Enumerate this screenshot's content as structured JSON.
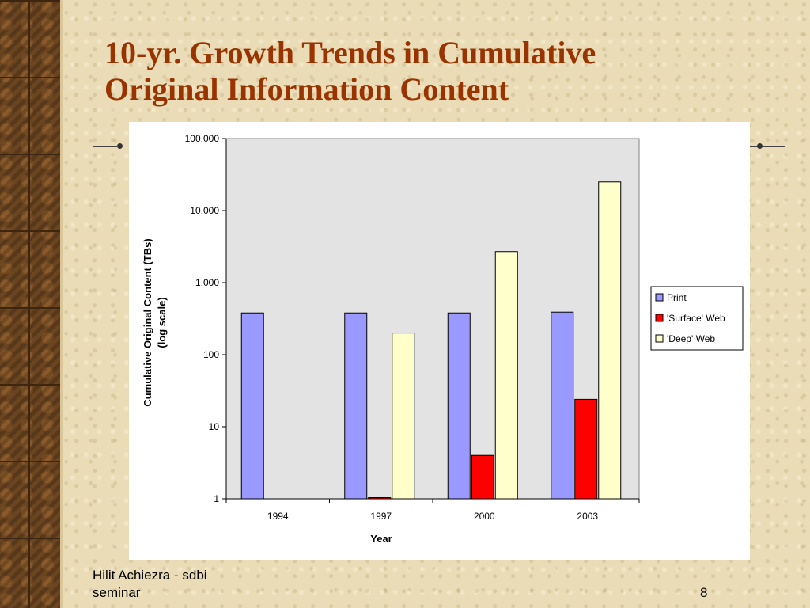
{
  "slide": {
    "title_line1": "10-yr. Growth Trends in Cumulative",
    "title_line2": "Original Information Content",
    "footer_line1": "Hilit Achiezra - sdbi",
    "footer_line2": "seminar",
    "page_number": "8",
    "accent_color": "#993300"
  },
  "chart_data": {
    "type": "bar",
    "scale": "log",
    "categories": [
      "1994",
      "1997",
      "2000",
      "2003"
    ],
    "series": [
      {
        "name": "Print",
        "color": "#9999ff",
        "values": [
          380,
          380,
          380,
          390
        ]
      },
      {
        "name": "'Surface' Web",
        "color": "#ff0000",
        "values": [
          null,
          1,
          4,
          24
        ]
      },
      {
        "name": "'Deep' Web",
        "color": "#ffffcc",
        "values": [
          null,
          200,
          2700,
          25000
        ]
      }
    ],
    "ylim": [
      1,
      100000
    ],
    "ytick_values": [
      1,
      10,
      100,
      1000,
      10000,
      100000
    ],
    "ytick_labels": [
      "1",
      "10",
      "100",
      "1,000",
      "10,000",
      "100,000"
    ],
    "xlabel": "Year",
    "ylabel_line1": "Cumulative Original Content (TBs)",
    "ylabel_line2": "(log scale)",
    "legend_position": "right",
    "plot_background": "#e3e3e3",
    "grid": false
  }
}
